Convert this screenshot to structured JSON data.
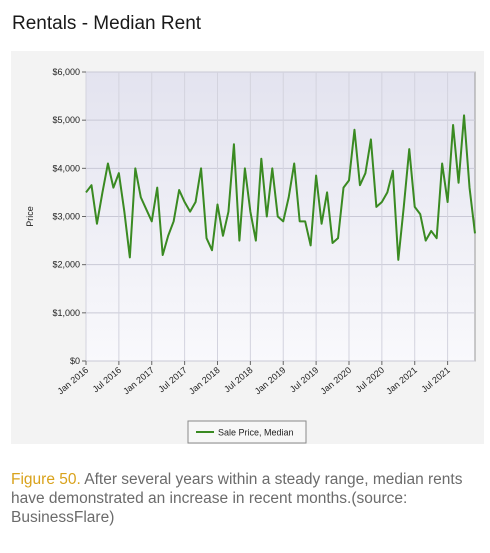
{
  "page": {
    "title": "Rentals - Median Rent",
    "caption_label": "Figure 50.",
    "caption_text": " After several years within a steady range, median rents have demonstrated an increase in recent months.(source: BusinessFlare)"
  },
  "colors": {
    "line": "#3a8a22",
    "caption_label": "#d9a21b"
  },
  "chart_data": {
    "type": "line",
    "ylabel": "Price",
    "ylim": [
      0,
      6000
    ],
    "y_ticks": [
      0,
      1000,
      2000,
      3000,
      4000,
      5000,
      6000
    ],
    "y_tick_labels": [
      "$0",
      "$1,000",
      "$2,000",
      "$3,000",
      "$4,000",
      "$5,000",
      "$6,000"
    ],
    "x_range": [
      "2016-01",
      "2021-12"
    ],
    "x_tick_labels": [
      "Jan 2016",
      "Jul 2016",
      "Jan 2017",
      "Jul 2017",
      "Jan 2018",
      "Jul 2018",
      "Jan 2019",
      "Jul 2019",
      "Jan 2020",
      "Jul 2020",
      "Jan 2021",
      "Jul 2021"
    ],
    "legend": "bottom",
    "series": [
      {
        "name": "Sale Price, Median",
        "x": [
          "2016-01",
          "2016-02",
          "2016-03",
          "2016-04",
          "2016-05",
          "2016-06",
          "2016-07",
          "2016-08",
          "2016-09",
          "2016-10",
          "2016-11",
          "2016-12",
          "2017-01",
          "2017-02",
          "2017-03",
          "2017-04",
          "2017-05",
          "2017-06",
          "2017-07",
          "2017-08",
          "2017-09",
          "2017-10",
          "2017-11",
          "2017-12",
          "2018-01",
          "2018-02",
          "2018-03",
          "2018-04",
          "2018-05",
          "2018-06",
          "2018-07",
          "2018-08",
          "2018-09",
          "2018-10",
          "2018-11",
          "2018-12",
          "2019-01",
          "2019-02",
          "2019-03",
          "2019-04",
          "2019-05",
          "2019-06",
          "2019-07",
          "2019-08",
          "2019-09",
          "2019-10",
          "2019-11",
          "2019-12",
          "2020-01",
          "2020-02",
          "2020-03",
          "2020-04",
          "2020-05",
          "2020-06",
          "2020-07",
          "2020-08",
          "2020-09",
          "2020-10",
          "2020-11",
          "2020-12",
          "2021-01",
          "2021-02",
          "2021-03",
          "2021-04",
          "2021-05",
          "2021-06",
          "2021-07",
          "2021-08",
          "2021-09",
          "2021-10",
          "2021-11",
          "2021-12"
        ],
        "values": [
          3500,
          3650,
          2850,
          3500,
          4100,
          3600,
          3900,
          3100,
          2150,
          4000,
          3400,
          3150,
          2900,
          3600,
          2200,
          2600,
          2900,
          3550,
          3300,
          3100,
          3300,
          4000,
          2550,
          2300,
          3250,
          2600,
          3100,
          4500,
          2500,
          4000,
          3100,
          2500,
          4200,
          3000,
          4000,
          3000,
          2900,
          3400,
          4100,
          2900,
          2900,
          2400,
          3850,
          2850,
          3500,
          2450,
          2550,
          3600,
          3750,
          4800,
          3650,
          3900,
          4600,
          3200,
          3300,
          3500,
          3950,
          2100,
          3200,
          4400,
          3200,
          3050,
          2500,
          2700,
          2550,
          4100,
          3300,
          4900,
          3700,
          5100,
          3600,
          2650
        ]
      }
    ]
  }
}
